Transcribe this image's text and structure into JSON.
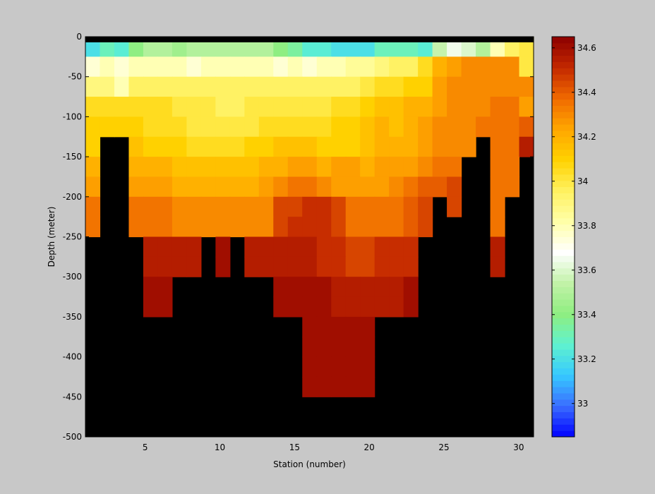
{
  "chart_data": {
    "type": "heatmap",
    "title": "",
    "xlabel": "Station (number)",
    "ylabel": "Depth (meter)",
    "xlim": [
      1,
      31
    ],
    "ylim": [
      -500,
      0
    ],
    "x_ticks": [
      5,
      10,
      15,
      20,
      25,
      30
    ],
    "y_ticks": [
      0,
      -50,
      -100,
      -150,
      -200,
      -250,
      -300,
      -350,
      -400,
      -450,
      -500
    ],
    "stations": [
      1,
      2,
      3,
      4,
      5,
      6,
      7,
      8,
      9,
      10,
      11,
      12,
      13,
      14,
      15,
      16,
      17,
      18,
      19,
      20,
      21,
      22,
      23,
      24,
      25,
      26,
      27,
      28,
      29,
      30,
      31
    ],
    "depth_bins": [
      0,
      -25,
      -50,
      -75,
      -100,
      -125,
      -150,
      -175,
      -200,
      -225,
      -250,
      -275,
      -300,
      -325,
      -350,
      -375,
      -400,
      -425,
      -450,
      -475
    ],
    "no_data_color": "#000000",
    "colorbar": {
      "range": [
        32.85,
        34.65
      ],
      "ticks": [
        33,
        33.2,
        33.4,
        33.6,
        33.8,
        34,
        34.2,
        34.4,
        34.6
      ],
      "colormap": [
        "#0000ff",
        "#3a6cff",
        "#36c9ff",
        "#5ff2cf",
        "#8fee80",
        "#c2f2a8",
        "#ffffff",
        "#ffffa8",
        "#fff160",
        "#ffd200",
        "#ffa600",
        "#f06a00",
        "#c32800",
        "#8c0000"
      ]
    },
    "salinity": [
      [
        33.2,
        33.3,
        33.25,
        33.4,
        33.5,
        33.5,
        33.45,
        33.5,
        33.5,
        33.5,
        33.5,
        33.5,
        33.5,
        33.4,
        33.35,
        33.25,
        33.25,
        33.2,
        33.2,
        33.2,
        33.3,
        33.3,
        33.3,
        33.25,
        33.55,
        33.65,
        33.6,
        33.5,
        33.8,
        33.95,
        34.0
      ],
      [
        33.75,
        33.8,
        33.75,
        33.8,
        33.8,
        33.8,
        33.8,
        33.75,
        33.8,
        33.8,
        33.8,
        33.8,
        33.8,
        33.75,
        33.8,
        33.75,
        33.8,
        33.8,
        33.85,
        33.85,
        33.9,
        33.95,
        33.95,
        34.05,
        34.2,
        34.25,
        34.3,
        34.3,
        34.3,
        34.3,
        34.0
      ],
      [
        33.9,
        33.9,
        33.8,
        33.95,
        33.95,
        33.95,
        33.95,
        33.95,
        33.95,
        33.95,
        33.95,
        33.95,
        33.95,
        33.95,
        33.95,
        33.95,
        33.95,
        33.95,
        33.95,
        34.0,
        34.05,
        34.05,
        34.1,
        34.1,
        34.25,
        34.3,
        34.3,
        34.3,
        34.3,
        34.3,
        34.3
      ],
      [
        34.05,
        34.05,
        34.05,
        34.05,
        34.05,
        34.05,
        34.0,
        34.0,
        34.0,
        33.95,
        33.95,
        34.0,
        34.0,
        34.0,
        34.0,
        34.0,
        34.0,
        34.05,
        34.05,
        34.1,
        34.15,
        34.15,
        34.2,
        34.2,
        34.25,
        34.3,
        34.3,
        34.3,
        34.35,
        34.35,
        34.25
      ],
      [
        34.1,
        34.1,
        34.1,
        34.1,
        34.05,
        34.05,
        34.05,
        34.0,
        34.0,
        34.0,
        34.0,
        34.0,
        34.05,
        34.05,
        34.05,
        34.05,
        34.05,
        34.1,
        34.1,
        34.15,
        34.2,
        34.15,
        34.2,
        34.25,
        34.3,
        34.3,
        34.3,
        34.35,
        34.35,
        34.35,
        34.4
      ],
      [
        34.1,
        null,
        null,
        34.15,
        34.1,
        34.1,
        34.1,
        34.05,
        34.05,
        34.05,
        34.05,
        34.1,
        34.1,
        34.15,
        34.15,
        34.15,
        34.1,
        34.1,
        34.1,
        34.15,
        34.2,
        34.2,
        34.2,
        34.25,
        34.3,
        34.3,
        34.3,
        null,
        34.35,
        34.35,
        34.55
      ],
      [
        34.2,
        null,
        null,
        34.2,
        34.2,
        34.2,
        34.15,
        34.15,
        34.15,
        34.15,
        34.15,
        34.15,
        34.2,
        34.2,
        34.25,
        34.25,
        34.2,
        34.25,
        34.25,
        34.2,
        34.25,
        34.25,
        34.25,
        34.3,
        34.35,
        34.35,
        null,
        null,
        34.35,
        34.35,
        null
      ],
      [
        34.25,
        null,
        null,
        34.25,
        34.25,
        34.25,
        34.2,
        34.2,
        34.2,
        34.2,
        34.2,
        34.2,
        34.25,
        34.3,
        34.35,
        34.35,
        34.3,
        34.25,
        34.25,
        34.25,
        34.25,
        34.3,
        34.35,
        34.4,
        34.4,
        34.45,
        null,
        null,
        34.35,
        34.35,
        null
      ],
      [
        34.35,
        null,
        null,
        34.35,
        34.35,
        34.35,
        34.3,
        34.3,
        34.3,
        34.3,
        34.3,
        34.3,
        34.3,
        34.45,
        34.45,
        34.5,
        34.5,
        34.45,
        34.35,
        34.35,
        34.35,
        34.35,
        34.4,
        34.45,
        null,
        34.45,
        null,
        null,
        34.35,
        null,
        null
      ],
      [
        34.35,
        null,
        null,
        34.35,
        34.35,
        34.35,
        34.3,
        34.3,
        34.3,
        34.3,
        34.3,
        34.3,
        34.3,
        34.45,
        34.5,
        34.5,
        34.5,
        34.45,
        34.35,
        34.35,
        34.35,
        34.35,
        34.4,
        34.45,
        null,
        null,
        null,
        null,
        34.35,
        null,
        null
      ],
      [
        null,
        null,
        null,
        null,
        34.55,
        34.55,
        34.55,
        34.55,
        null,
        34.6,
        null,
        34.55,
        34.55,
        34.55,
        34.55,
        34.55,
        34.5,
        34.5,
        34.45,
        34.45,
        34.5,
        34.5,
        34.5,
        null,
        null,
        null,
        null,
        null,
        34.55,
        null,
        null
      ],
      [
        null,
        null,
        null,
        null,
        34.55,
        34.55,
        34.55,
        34.55,
        null,
        34.6,
        null,
        34.55,
        34.55,
        34.55,
        34.55,
        34.55,
        34.5,
        34.5,
        34.45,
        34.45,
        34.5,
        34.5,
        34.5,
        null,
        null,
        null,
        null,
        null,
        34.55,
        null,
        null
      ],
      [
        null,
        null,
        null,
        null,
        34.6,
        34.6,
        null,
        null,
        null,
        null,
        null,
        null,
        null,
        34.6,
        34.6,
        34.6,
        34.6,
        34.55,
        34.55,
        34.55,
        34.55,
        34.55,
        34.6,
        null,
        null,
        null,
        null,
        null,
        null,
        null,
        null
      ],
      [
        null,
        null,
        null,
        null,
        34.6,
        34.6,
        null,
        null,
        null,
        null,
        null,
        null,
        null,
        34.6,
        34.6,
        34.6,
        34.6,
        34.55,
        34.55,
        34.55,
        34.55,
        34.55,
        34.6,
        null,
        null,
        null,
        null,
        null,
        null,
        null,
        null
      ],
      [
        null,
        null,
        null,
        null,
        null,
        null,
        null,
        null,
        null,
        null,
        null,
        null,
        null,
        null,
        null,
        34.6,
        34.6,
        34.6,
        34.6,
        34.6,
        null,
        null,
        null,
        null,
        null,
        null,
        null,
        null,
        null,
        null,
        null
      ],
      [
        null,
        null,
        null,
        null,
        null,
        null,
        null,
        null,
        null,
        null,
        null,
        null,
        null,
        null,
        null,
        34.6,
        34.6,
        34.6,
        34.6,
        34.6,
        null,
        null,
        null,
        null,
        null,
        null,
        null,
        null,
        null,
        null,
        null
      ],
      [
        null,
        null,
        null,
        null,
        null,
        null,
        null,
        null,
        null,
        null,
        null,
        null,
        null,
        null,
        null,
        34.6,
        34.6,
        34.6,
        34.6,
        34.6,
        null,
        null,
        null,
        null,
        null,
        null,
        null,
        null,
        null,
        null,
        null
      ],
      [
        null,
        null,
        null,
        null,
        null,
        null,
        null,
        null,
        null,
        null,
        null,
        null,
        null,
        null,
        null,
        34.6,
        34.6,
        34.6,
        34.6,
        34.6,
        null,
        null,
        null,
        null,
        null,
        null,
        null,
        null,
        null,
        null,
        null
      ],
      [
        null,
        null,
        null,
        null,
        null,
        null,
        null,
        null,
        null,
        null,
        null,
        null,
        null,
        null,
        null,
        null,
        null,
        null,
        null,
        null,
        null,
        null,
        null,
        null,
        null,
        null,
        null,
        null,
        null,
        null,
        null
      ],
      [
        null,
        null,
        null,
        null,
        null,
        null,
        null,
        null,
        null,
        null,
        null,
        null,
        null,
        null,
        null,
        null,
        null,
        null,
        null,
        null,
        null,
        null,
        null,
        null,
        null,
        null,
        null,
        null,
        null,
        null,
        null
      ]
    ]
  }
}
